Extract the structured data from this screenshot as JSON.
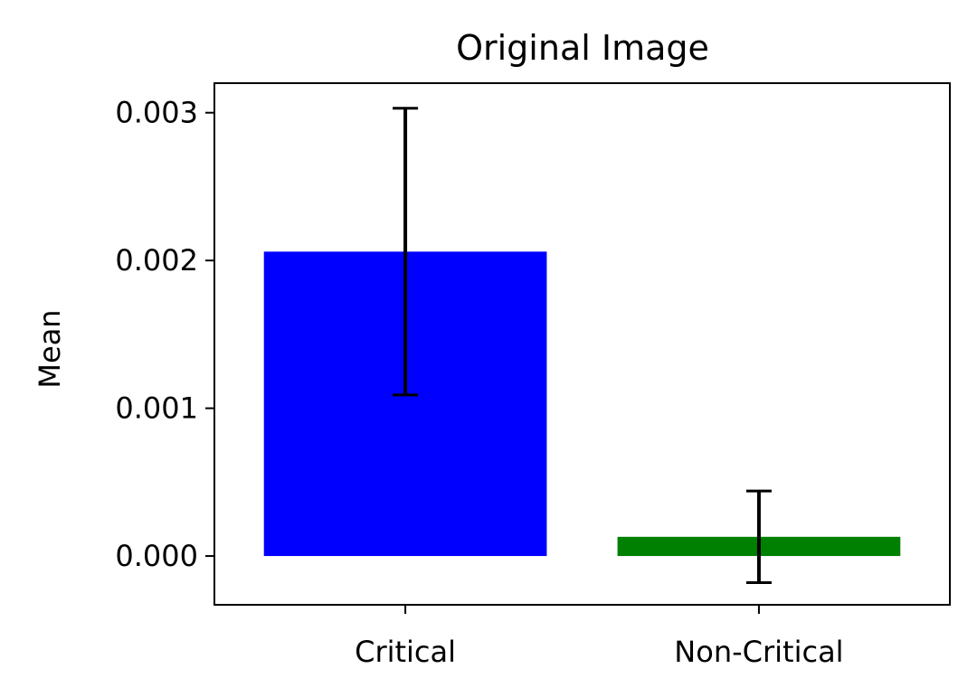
{
  "chart_data": {
    "type": "bar",
    "title": "Original Image",
    "xlabel": "",
    "ylabel": "Mean",
    "categories": [
      "Critical",
      "Non-Critical"
    ],
    "values": [
      0.00206,
      0.00013
    ],
    "error": [
      0.00097,
      0.00031
    ],
    "colors": [
      "#0000ff",
      "#008000"
    ],
    "error_color": "#000000",
    "ylim": [
      -0.00033,
      0.0032
    ],
    "yticks": [
      0.0,
      0.001,
      0.002,
      0.003
    ],
    "ytick_labels": [
      "0.000",
      "0.001",
      "0.002",
      "0.003"
    ],
    "grid": false,
    "legend": false
  }
}
